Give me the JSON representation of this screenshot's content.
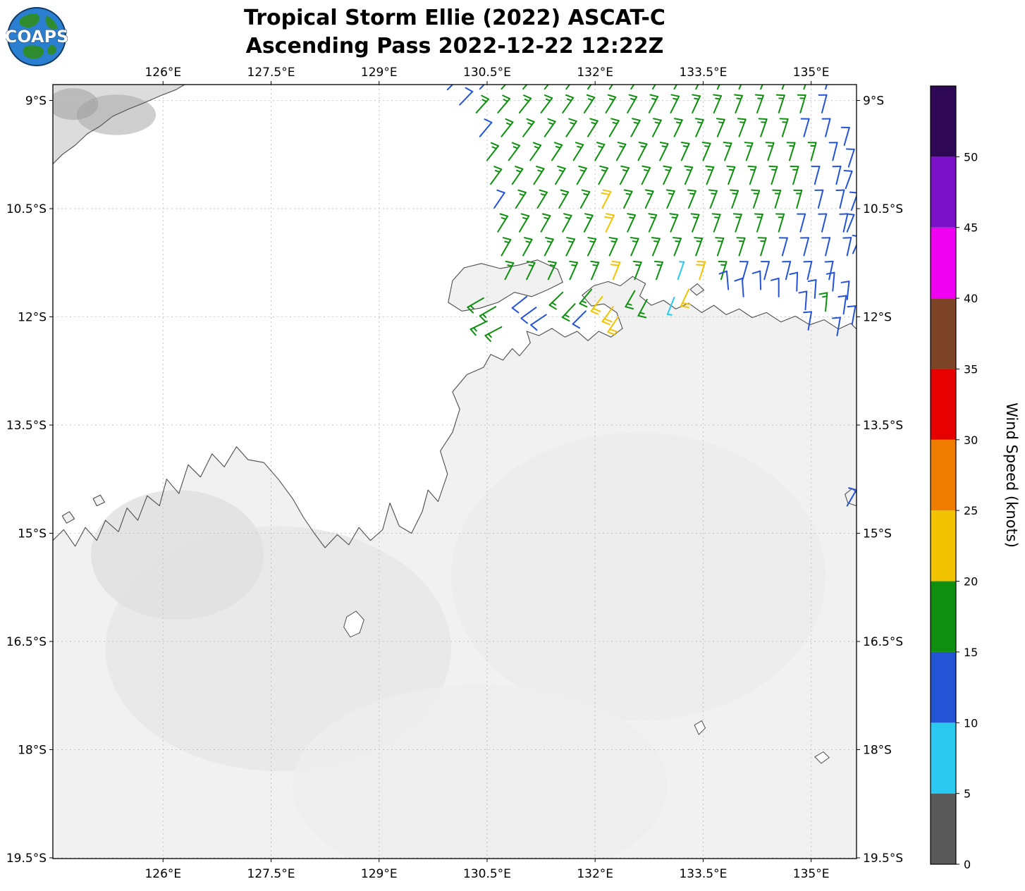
{
  "logo": {
    "text": "COAPS"
  },
  "title": {
    "line1": "Tropical Storm Ellie (2022) ASCAT-C",
    "line2": "Ascending Pass 2022-12-22 12:22Z"
  },
  "chart_data": {
    "type": "scatter",
    "subtype": "wind-barb-map",
    "title": "Tropical Storm Ellie (2022) ASCAT-C Ascending Pass 2022-12-22 12:22Z",
    "grid": "dashed",
    "lon_range": [
      124.47,
      135.63
    ],
    "lat_range": [
      8.78,
      19.51
    ],
    "lon_ticks": [
      {
        "v": 126,
        "label": "126°E"
      },
      {
        "v": 127.5,
        "label": "127.5°E"
      },
      {
        "v": 129,
        "label": "129°E"
      },
      {
        "v": 130.5,
        "label": "130.5°E"
      },
      {
        "v": 132,
        "label": "132°E"
      },
      {
        "v": 133.5,
        "label": "133.5°E"
      },
      {
        "v": 135,
        "label": "135°E"
      }
    ],
    "lat_ticks": [
      {
        "v": 9,
        "label": "9°S"
      },
      {
        "v": 10.5,
        "label": "10.5°S"
      },
      {
        "v": 12,
        "label": "12°S"
      },
      {
        "v": 13.5,
        "label": "13.5°S"
      },
      {
        "v": 15,
        "label": "15°S"
      },
      {
        "v": 16.5,
        "label": "16.5°S"
      },
      {
        "v": 18,
        "label": "18°S"
      },
      {
        "v": 19.5,
        "label": "19.5°S"
      }
    ],
    "speed_bins": [
      [
        0,
        "#595959"
      ],
      [
        5,
        "#2bc8f0"
      ],
      [
        10,
        "#2453d6"
      ],
      [
        15,
        "#0f8f0f"
      ],
      [
        20,
        "#f2c300"
      ],
      [
        25,
        "#f07d00"
      ],
      [
        30,
        "#e60000"
      ],
      [
        35,
        "#7d4427"
      ],
      [
        40,
        "#f000f0"
      ],
      [
        45,
        "#7a10c8"
      ],
      [
        50,
        "#2e0854"
      ]
    ],
    "colorbar": {
      "label": "Wind Speed (knots)",
      "min": 0,
      "max": 55,
      "ticks": [
        0,
        5,
        10,
        15,
        20,
        25,
        30,
        35,
        40,
        45,
        50
      ]
    },
    "wind_barbs": {
      "units": "knots",
      "rows": [
        {
          "lat": 8.84,
          "lon0": 130.4,
          "dlon": 0.3,
          "dir0": -46,
          "ddir": -1.7,
          "speeds": [
            12,
            17,
            18,
            17,
            17,
            18,
            17,
            17,
            17,
            18,
            17,
            17,
            18,
            17,
            17,
            17,
            12
          ]
        },
        {
          "lat": 9.17,
          "lon0": 130.35,
          "dlon": 0.3,
          "dir0": -48,
          "ddir": -1.7,
          "speeds": [
            17,
            17,
            17,
            18,
            17,
            17,
            17,
            17,
            18,
            17,
            17,
            17,
            18,
            17,
            17,
            17,
            12
          ]
        },
        {
          "lat": 9.5,
          "lon0": 130.4,
          "dlon": 0.3,
          "dir0": -50,
          "ddir": -1.6,
          "speeds": [
            12,
            17,
            17,
            17,
            18,
            17,
            17,
            18,
            17,
            17,
            17,
            18,
            17,
            17,
            17,
            12,
            12
          ]
        },
        {
          "lat": 9.83,
          "lon0": 130.5,
          "dlon": 0.3,
          "dir0": -52,
          "ddir": -1.5,
          "speeds": [
            17,
            18,
            17,
            17,
            17,
            17,
            18,
            17,
            17,
            18,
            17,
            17,
            17,
            18,
            17,
            17,
            12
          ]
        },
        {
          "lat": 10.16,
          "lon0": 130.55,
          "dlon": 0.3,
          "dir0": -54,
          "ddir": -1.4,
          "speeds": [
            17,
            17,
            18,
            17,
            17,
            17,
            17,
            17,
            18,
            17,
            17,
            17,
            17,
            18,
            17,
            12,
            12
          ]
        },
        {
          "lat": 10.49,
          "lon0": 130.6,
          "dlon": 0.3,
          "dir0": -56,
          "ddir": -1.3,
          "speeds": [
            12,
            17,
            17,
            17,
            17,
            22,
            17,
            17,
            17,
            18,
            17,
            17,
            17,
            17,
            17,
            12,
            12
          ]
        },
        {
          "lat": 10.82,
          "lon0": 130.65,
          "dlon": 0.3,
          "dir0": -58,
          "ddir": -1.2,
          "speeds": [
            17,
            17,
            17,
            17,
            18,
            22,
            17,
            17,
            17,
            17,
            18,
            17,
            17,
            17,
            12,
            12,
            12
          ]
        },
        {
          "lat": 11.15,
          "lon0": 130.7,
          "dlon": 0.3,
          "dir0": -60,
          "ddir": -1.1,
          "speeds": [
            17,
            17,
            17,
            17,
            17,
            18,
            17,
            17,
            17,
            17,
            17,
            18,
            17,
            12,
            12,
            12,
            12
          ]
        },
        {
          "lat": 11.48,
          "lon0": 130.75,
          "dlon": 0.3,
          "dir0": -63,
          "ddir": -1.0,
          "speeds": [
            17,
            17,
            17,
            18,
            17,
            22,
            17,
            17,
            7,
            22,
            17,
            12,
            12,
            12,
            12,
            12
          ]
        }
      ],
      "extras": [
        [
          129.95,
          8.85,
          12,
          -45
        ],
        [
          130.12,
          9.06,
          12,
          -46
        ],
        [
          130.45,
          11.74,
          17,
          150
        ],
        [
          130.62,
          11.86,
          18,
          150
        ],
        [
          130.5,
          12.06,
          17,
          154
        ],
        [
          130.7,
          12.14,
          17,
          152
        ],
        [
          131.05,
          11.72,
          12,
          142
        ],
        [
          131.18,
          11.87,
          12,
          144
        ],
        [
          131.32,
          11.97,
          12,
          146
        ],
        [
          131.55,
          11.66,
          17,
          136
        ],
        [
          131.72,
          11.82,
          18,
          133
        ],
        [
          131.95,
          11.62,
          17,
          130
        ],
        [
          131.87,
          11.92,
          12,
          135
        ],
        [
          132.1,
          11.72,
          22,
          128
        ],
        [
          132.25,
          11.86,
          22,
          126
        ],
        [
          132.32,
          12.0,
          22,
          124
        ],
        [
          132.55,
          11.64,
          17,
          120
        ],
        [
          132.72,
          11.76,
          17,
          118
        ],
        [
          133.1,
          11.73,
          7,
          112
        ],
        [
          133.3,
          11.62,
          22,
          115
        ],
        [
          133.85,
          11.62,
          12,
          -95
        ],
        [
          134.06,
          11.72,
          12,
          -94
        ],
        [
          134.3,
          11.62,
          12,
          -92
        ],
        [
          134.55,
          11.72,
          12,
          -90
        ],
        [
          134.8,
          11.64,
          12,
          -88
        ],
        [
          135.05,
          11.74,
          12,
          -86
        ],
        [
          135.3,
          11.64,
          12,
          -85
        ],
        [
          135.5,
          11.76,
          12,
          -84
        ],
        [
          135.45,
          11.96,
          12,
          -82
        ],
        [
          135.2,
          11.92,
          17,
          -85
        ],
        [
          134.92,
          11.9,
          12,
          -86
        ],
        [
          134.96,
          12.18,
          12,
          -80
        ],
        [
          135.36,
          12.26,
          12,
          -80
        ],
        [
          135.57,
          12.1,
          12,
          -80
        ],
        [
          135.46,
          9.62,
          12,
          -74
        ],
        [
          135.52,
          9.92,
          12,
          -72
        ],
        [
          135.48,
          10.22,
          12,
          -70
        ],
        [
          135.56,
          10.52,
          12,
          -70
        ],
        [
          135.5,
          10.82,
          12,
          -68
        ],
        [
          135.58,
          11.12,
          12,
          -66
        ],
        [
          135.5,
          14.62,
          12,
          -60
        ]
      ]
    }
  },
  "map": {
    "land_color": "#f1f1f1",
    "timor_color": "#dcdcdc",
    "ocean_color": "#ffffff",
    "coast_color": "#4d4d4d",
    "mainland_coast": [
      [
        124.47,
        15.1
      ],
      [
        124.62,
        14.95
      ],
      [
        124.78,
        15.18
      ],
      [
        124.92,
        14.92
      ],
      [
        125.08,
        15.1
      ],
      [
        125.2,
        14.82
      ],
      [
        125.38,
        14.98
      ],
      [
        125.5,
        14.65
      ],
      [
        125.65,
        14.82
      ],
      [
        125.78,
        14.48
      ],
      [
        125.95,
        14.62
      ],
      [
        126.05,
        14.25
      ],
      [
        126.22,
        14.45
      ],
      [
        126.35,
        14.05
      ],
      [
        126.52,
        14.22
      ],
      [
        126.68,
        13.9
      ],
      [
        126.85,
        14.08
      ],
      [
        127.02,
        13.8
      ],
      [
        127.18,
        13.98
      ],
      [
        127.4,
        14.02
      ],
      [
        127.6,
        14.25
      ],
      [
        127.8,
        14.52
      ],
      [
        127.95,
        14.78
      ],
      [
        128.1,
        15.0
      ],
      [
        128.25,
        15.2
      ],
      [
        128.42,
        15.02
      ],
      [
        128.58,
        15.16
      ],
      [
        128.72,
        14.92
      ],
      [
        128.88,
        15.1
      ],
      [
        129.05,
        14.95
      ],
      [
        129.15,
        14.58
      ],
      [
        129.28,
        14.9
      ],
      [
        129.45,
        15.0
      ],
      [
        129.6,
        14.7
      ],
      [
        129.68,
        14.4
      ],
      [
        129.82,
        14.56
      ],
      [
        129.95,
        14.18
      ],
      [
        129.85,
        13.86
      ],
      [
        130.02,
        13.6
      ],
      [
        130.12,
        13.28
      ],
      [
        130.02,
        13.04
      ],
      [
        130.22,
        12.8
      ],
      [
        130.45,
        12.7
      ],
      [
        130.55,
        12.52
      ],
      [
        130.72,
        12.6
      ],
      [
        130.85,
        12.44
      ],
      [
        130.95,
        12.54
      ],
      [
        131.1,
        12.36
      ],
      [
        131.05,
        12.2
      ],
      [
        131.22,
        12.26
      ],
      [
        131.4,
        12.16
      ],
      [
        131.58,
        12.28
      ],
      [
        131.75,
        12.2
      ],
      [
        131.9,
        12.33
      ],
      [
        132.05,
        12.2
      ],
      [
        132.22,
        12.28
      ],
      [
        132.38,
        12.16
      ],
      [
        132.3,
        11.94
      ],
      [
        132.12,
        11.82
      ],
      [
        131.95,
        11.85
      ],
      [
        131.82,
        11.7
      ],
      [
        131.98,
        11.57
      ],
      [
        132.18,
        11.51
      ],
      [
        132.35,
        11.57
      ],
      [
        132.52,
        11.44
      ],
      [
        132.7,
        11.54
      ],
      [
        132.62,
        11.71
      ],
      [
        132.78,
        11.84
      ],
      [
        132.95,
        11.77
      ],
      [
        133.12,
        11.89
      ],
      [
        133.3,
        11.81
      ],
      [
        133.48,
        11.94
      ],
      [
        133.65,
        11.84
      ],
      [
        133.82,
        11.97
      ],
      [
        134.0,
        11.89
      ],
      [
        134.18,
        12.01
      ],
      [
        134.38,
        11.94
      ],
      [
        134.58,
        12.07
      ],
      [
        134.78,
        11.99
      ],
      [
        134.98,
        12.11
      ],
      [
        135.18,
        12.04
      ],
      [
        135.38,
        12.17
      ],
      [
        135.55,
        12.09
      ],
      [
        135.63,
        12.17
      ]
    ],
    "mainland_close": [
      [
        135.63,
        19.51
      ],
      [
        124.47,
        19.51
      ]
    ],
    "timor_coast": [
      [
        124.47,
        9.88
      ],
      [
        124.6,
        9.75
      ],
      [
        124.78,
        9.62
      ],
      [
        124.95,
        9.46
      ],
      [
        125.12,
        9.36
      ],
      [
        125.3,
        9.22
      ],
      [
        125.52,
        9.12
      ],
      [
        125.72,
        9.04
      ],
      [
        125.95,
        8.94
      ],
      [
        126.18,
        8.85
      ],
      [
        126.3,
        8.78
      ]
    ],
    "timor_close": [
      [
        124.47,
        8.78
      ]
    ],
    "islands": [
      [
        [
          129.96,
          11.8
        ],
        [
          130.02,
          11.5
        ],
        [
          130.18,
          11.32
        ],
        [
          130.42,
          11.26
        ],
        [
          130.68,
          11.33
        ],
        [
          130.95,
          11.28
        ],
        [
          131.2,
          11.21
        ],
        [
          131.48,
          11.34
        ],
        [
          131.55,
          11.52
        ],
        [
          131.35,
          11.62
        ],
        [
          131.12,
          11.72
        ],
        [
          130.88,
          11.66
        ],
        [
          130.65,
          11.8
        ],
        [
          130.4,
          11.88
        ],
        [
          130.15,
          11.92
        ]
      ],
      [
        [
          133.32,
          11.62
        ],
        [
          133.42,
          11.54
        ],
        [
          133.51,
          11.63
        ],
        [
          133.41,
          11.7
        ]
      ],
      [
        [
          124.6,
          14.76
        ],
        [
          124.7,
          14.7
        ],
        [
          124.77,
          14.8
        ],
        [
          124.66,
          14.86
        ]
      ],
      [
        [
          125.03,
          14.52
        ],
        [
          125.13,
          14.47
        ],
        [
          125.19,
          14.57
        ],
        [
          125.08,
          14.62
        ]
      ],
      [
        [
          135.47,
          14.46
        ],
        [
          135.57,
          14.38
        ],
        [
          135.63,
          14.44
        ],
        [
          135.63,
          14.62
        ],
        [
          135.51,
          14.58
        ]
      ]
    ],
    "lakes": [
      [
        [
          128.55,
          16.16
        ],
        [
          128.68,
          16.08
        ],
        [
          128.79,
          16.2
        ],
        [
          128.73,
          16.38
        ],
        [
          128.6,
          16.44
        ],
        [
          128.51,
          16.3
        ]
      ],
      [
        [
          133.38,
          17.66
        ],
        [
          133.48,
          17.6
        ],
        [
          133.53,
          17.7
        ],
        [
          133.44,
          17.79
        ]
      ],
      [
        [
          135.05,
          18.1
        ],
        [
          135.17,
          18.03
        ],
        [
          135.25,
          18.11
        ],
        [
          135.14,
          18.19
        ]
      ]
    ],
    "shading": [
      {
        "lon": 125.35,
        "lat": 9.2,
        "rx": 0.55,
        "ry": 0.28,
        "color": "#a8a8a8",
        "opacity": 0.55
      },
      {
        "lon": 124.75,
        "lat": 9.05,
        "rx": 0.35,
        "ry": 0.22,
        "color": "#999999",
        "opacity": 0.5
      },
      {
        "lon": 127.6,
        "lat": 16.6,
        "rx": 2.4,
        "ry": 1.7,
        "color": "#e8e8e8",
        "opacity": 0.9
      },
      {
        "lon": 132.6,
        "lat": 15.6,
        "rx": 2.6,
        "ry": 2.0,
        "color": "#ececec",
        "opacity": 0.9
      },
      {
        "lon": 126.2,
        "lat": 15.3,
        "rx": 1.2,
        "ry": 0.9,
        "color": "#e0e0e0",
        "opacity": 0.8
      },
      {
        "lon": 130.4,
        "lat": 18.5,
        "rx": 2.6,
        "ry": 1.4,
        "color": "#ededed",
        "opacity": 0.9
      }
    ]
  }
}
